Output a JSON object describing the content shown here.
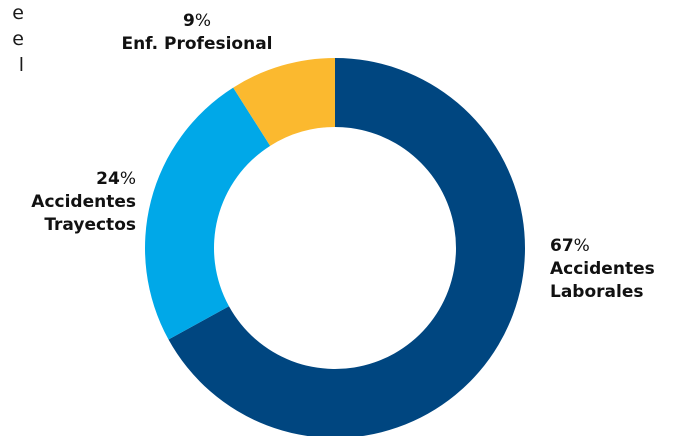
{
  "left_text_fragments": [
    "e",
    "e",
    "l"
  ],
  "chart_data": {
    "type": "pie",
    "donut": true,
    "title": "",
    "slices": [
      {
        "label": "Accidentes Laborales",
        "value": 67,
        "color": "#004680"
      },
      {
        "label": "Accidentes Trayectos",
        "value": 24,
        "color": "#00a8e8"
      },
      {
        "label": "Enf. Profesional",
        "value": 9,
        "color": "#fbb92f"
      }
    ],
    "labels": {
      "enf": {
        "pct": "9",
        "sign": "%",
        "line1": "Enf. Profesional",
        "line2": ""
      },
      "tray": {
        "pct": "24",
        "sign": "%",
        "line1": "Accidentes",
        "line2": "Trayectos"
      },
      "lab": {
        "pct": "67",
        "sign": "%",
        "line1": "Accidentes",
        "line2": "Laborales"
      }
    }
  }
}
